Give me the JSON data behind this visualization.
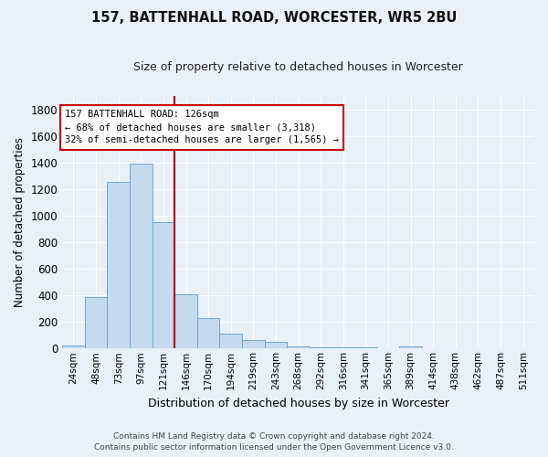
{
  "title": "157, BATTENHALL ROAD, WORCESTER, WR5 2BU",
  "subtitle": "Size of property relative to detached houses in Worcester",
  "xlabel": "Distribution of detached houses by size in Worcester",
  "ylabel": "Number of detached properties",
  "footer_line1": "Contains HM Land Registry data © Crown copyright and database right 2024.",
  "footer_line2": "Contains public sector information licensed under the Open Government Licence v3.0.",
  "categories": [
    "24sqm",
    "48sqm",
    "73sqm",
    "97sqm",
    "121sqm",
    "146sqm",
    "170sqm",
    "194sqm",
    "219sqm",
    "243sqm",
    "268sqm",
    "292sqm",
    "316sqm",
    "341sqm",
    "365sqm",
    "389sqm",
    "414sqm",
    "438sqm",
    "462sqm",
    "487sqm",
    "511sqm"
  ],
  "values": [
    22,
    385,
    1255,
    1395,
    950,
    410,
    228,
    115,
    65,
    50,
    18,
    10,
    6,
    8,
    4,
    18,
    2,
    2,
    2,
    2,
    2
  ],
  "bar_color": "#c5d9ef",
  "bar_edge_color": "#6aaad4",
  "background_color": "#e8f0f8",
  "grid_color": "#d0d8e8",
  "property_line_x": 4.5,
  "property_label": "157 BATTENHALL ROAD: 126sqm",
  "annotation_line1": "← 68% of detached houses are smaller (3,318)",
  "annotation_line2": "32% of semi-detached houses are larger (1,565) →",
  "annotation_box_color": "#ffffff",
  "annotation_box_edge": "#cc0000",
  "red_line_color": "#aa0000",
  "ylim": [
    0,
    1900
  ],
  "yticks": [
    0,
    200,
    400,
    600,
    800,
    1000,
    1200,
    1400,
    1600,
    1800
  ]
}
